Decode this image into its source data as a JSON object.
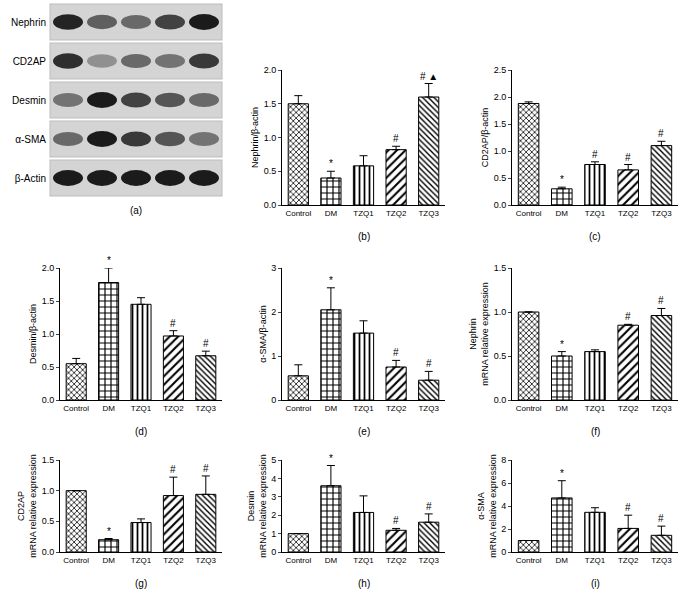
{
  "blot": {
    "rows": [
      "Nephrin",
      "CD2AP",
      "Desmin",
      "α-SMA",
      "β-Actin"
    ],
    "label": "(a)"
  },
  "chart_data": [
    {
      "type": "bar",
      "label": "(b)",
      "ylabel": "Nephrin/β-actin",
      "color": "#000000",
      "categories": [
        "Control",
        "DM",
        "TZQ1",
        "TZQ2",
        "TZQ3"
      ],
      "values": [
        1.5,
        0.4,
        0.58,
        0.82,
        1.6
      ],
      "errors": [
        0.12,
        0.1,
        0.15,
        0.05,
        0.2
      ],
      "significance": [
        null,
        "*",
        null,
        "#",
        "# ▲"
      ],
      "ylim": [
        0,
        2
      ],
      "yticks": [
        {
          "value": 0,
          "label": "0.0"
        },
        0.5,
        {
          "value": 1,
          "label": "1.0"
        },
        1.5,
        {
          "value": 2,
          "label": "2.0"
        }
      ]
    },
    {
      "type": "bar",
      "label": "(c)",
      "ylabel": "CD2AP/β-actin",
      "color": "#000000",
      "categories": [
        "Control",
        "DM",
        "TZQ1",
        "TZQ2",
        "TZQ3"
      ],
      "values": [
        1.88,
        0.3,
        0.75,
        0.65,
        1.1
      ],
      "errors": [
        0.03,
        0.03,
        0.05,
        0.1,
        0.08
      ],
      "significance": [
        null,
        "*",
        "#",
        "#",
        "#"
      ],
      "ylim": [
        0,
        2.5
      ],
      "yticks": [
        {
          "value": 0,
          "label": "0.0"
        },
        0.5,
        {
          "value": 1,
          "label": "1.0"
        },
        1.5,
        {
          "value": 2,
          "label": "2.0"
        },
        2.5
      ]
    },
    {
      "type": "bar",
      "label": "(d)",
      "ylabel": "Desmin/β-actin",
      "color": "#000000",
      "categories": [
        "Control",
        "DM",
        "TZQ1",
        "TZQ2",
        "TZQ3"
      ],
      "values": [
        0.55,
        1.78,
        1.45,
        0.97,
        0.67
      ],
      "errors": [
        0.08,
        0.22,
        0.1,
        0.08,
        0.07
      ],
      "significance": [
        null,
        "*",
        null,
        "#",
        "#"
      ],
      "ylim": [
        0,
        2
      ],
      "yticks": [
        {
          "value": 0,
          "label": "0.0"
        },
        0.5,
        {
          "value": 1,
          "label": "1.0"
        },
        1.5,
        {
          "value": 2,
          "label": "2.0"
        }
      ]
    },
    {
      "type": "bar",
      "label": "(e)",
      "ylabel": "α-SMA/β-actin",
      "color": "#000000",
      "categories": [
        "Control",
        "DM",
        "TZQ1",
        "TZQ2",
        "TZQ3"
      ],
      "values": [
        0.55,
        2.05,
        1.52,
        0.75,
        0.45
      ],
      "errors": [
        0.25,
        0.5,
        0.28,
        0.15,
        0.2
      ],
      "significance": [
        null,
        "*",
        null,
        "#",
        "#"
      ],
      "ylim": [
        0,
        3
      ],
      "yticks": [
        0,
        1,
        2,
        3
      ]
    },
    {
      "type": "bar",
      "label": "(f)",
      "ylabel": "Nephrin\nmRNA relative expression",
      "color": "#000000",
      "categories": [
        "Control",
        "DM",
        "TZQ1",
        "TZQ2",
        "TZQ3"
      ],
      "values": [
        1.0,
        0.5,
        0.55,
        0.85,
        0.96
      ],
      "errors": [
        0,
        0.05,
        0.02,
        0.01,
        0.08
      ],
      "significance": [
        null,
        "*",
        null,
        "#",
        "#"
      ],
      "ylim": [
        0,
        1.5
      ],
      "yticks": [
        {
          "value": 0,
          "label": "0.0"
        },
        0.5,
        {
          "value": 1,
          "label": "1.0"
        },
        1.5
      ]
    },
    {
      "type": "bar",
      "label": "(g)",
      "ylabel": "CD2AP\nmRNA relative expression",
      "color": "#000000",
      "categories": [
        "Control",
        "DM",
        "TZQ1",
        "TZQ2",
        "TZQ3"
      ],
      "values": [
        1.0,
        0.2,
        0.48,
        0.92,
        0.94
      ],
      "errors": [
        0,
        0.02,
        0.06,
        0.3,
        0.3
      ],
      "significance": [
        null,
        "*",
        null,
        "#",
        "#"
      ],
      "ylim": [
        0,
        1.5
      ],
      "yticks": [
        {
          "value": 0,
          "label": "0.0"
        },
        0.5,
        {
          "value": 1,
          "label": "1.0"
        },
        1.5
      ]
    },
    {
      "type": "bar",
      "label": "(h)",
      "ylabel": "Desmin\nmRNA relative expression",
      "color": "#000000",
      "categories": [
        "Control",
        "DM",
        "TZQ1",
        "TZQ2",
        "TZQ3"
      ],
      "values": [
        1.0,
        3.6,
        2.15,
        1.18,
        1.62
      ],
      "errors": [
        0,
        1.1,
        0.9,
        0.1,
        0.45
      ],
      "significance": [
        null,
        "*",
        null,
        "#",
        "#"
      ],
      "ylim": [
        0,
        5
      ],
      "yticks": [
        0,
        1,
        2,
        3,
        4,
        5
      ]
    },
    {
      "type": "bar",
      "label": "(i)",
      "ylabel": "α-SMA\nmRNA relative expression",
      "color": "#000000",
      "categories": [
        "Control",
        "DM",
        "TZQ1",
        "TZQ2",
        "TZQ3"
      ],
      "values": [
        1.0,
        4.7,
        3.45,
        2.05,
        1.45
      ],
      "errors": [
        0,
        1.5,
        0.4,
        1.15,
        0.8
      ],
      "significance": [
        null,
        "*",
        null,
        "#",
        "#"
      ],
      "ylim": [
        0,
        8
      ],
      "yticks": [
        0,
        2,
        4,
        6,
        8
      ]
    }
  ]
}
